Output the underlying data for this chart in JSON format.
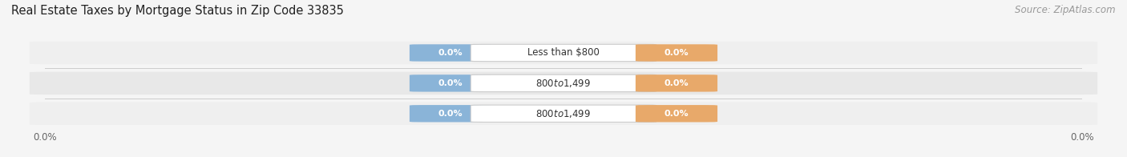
{
  "title": "Real Estate Taxes by Mortgage Status in Zip Code 33835",
  "source": "Source: ZipAtlas.com",
  "categories": [
    "Less than $800",
    "$800 to $1,499",
    "$800 to $1,499"
  ],
  "without_mortgage": [
    0.0,
    0.0,
    0.0
  ],
  "with_mortgage": [
    0.0,
    0.0,
    0.0
  ],
  "without_mortgage_color": "#8ab4d8",
  "with_mortgage_color": "#e8a96a",
  "label_bg_without": "#8ab4d8",
  "label_bg_with": "#e8a96a",
  "bar_bg_colors": [
    "#efefef",
    "#e8e8e8",
    "#efefef"
  ],
  "title_fontsize": 10.5,
  "source_fontsize": 8.5,
  "tick_label_fontsize": 8.5,
  "legend_fontsize": 9,
  "x_left_label": "0.0%",
  "x_right_label": "0.0%",
  "figsize": [
    14.06,
    1.96
  ],
  "dpi": 100,
  "bg_color": "#f5f5f5"
}
